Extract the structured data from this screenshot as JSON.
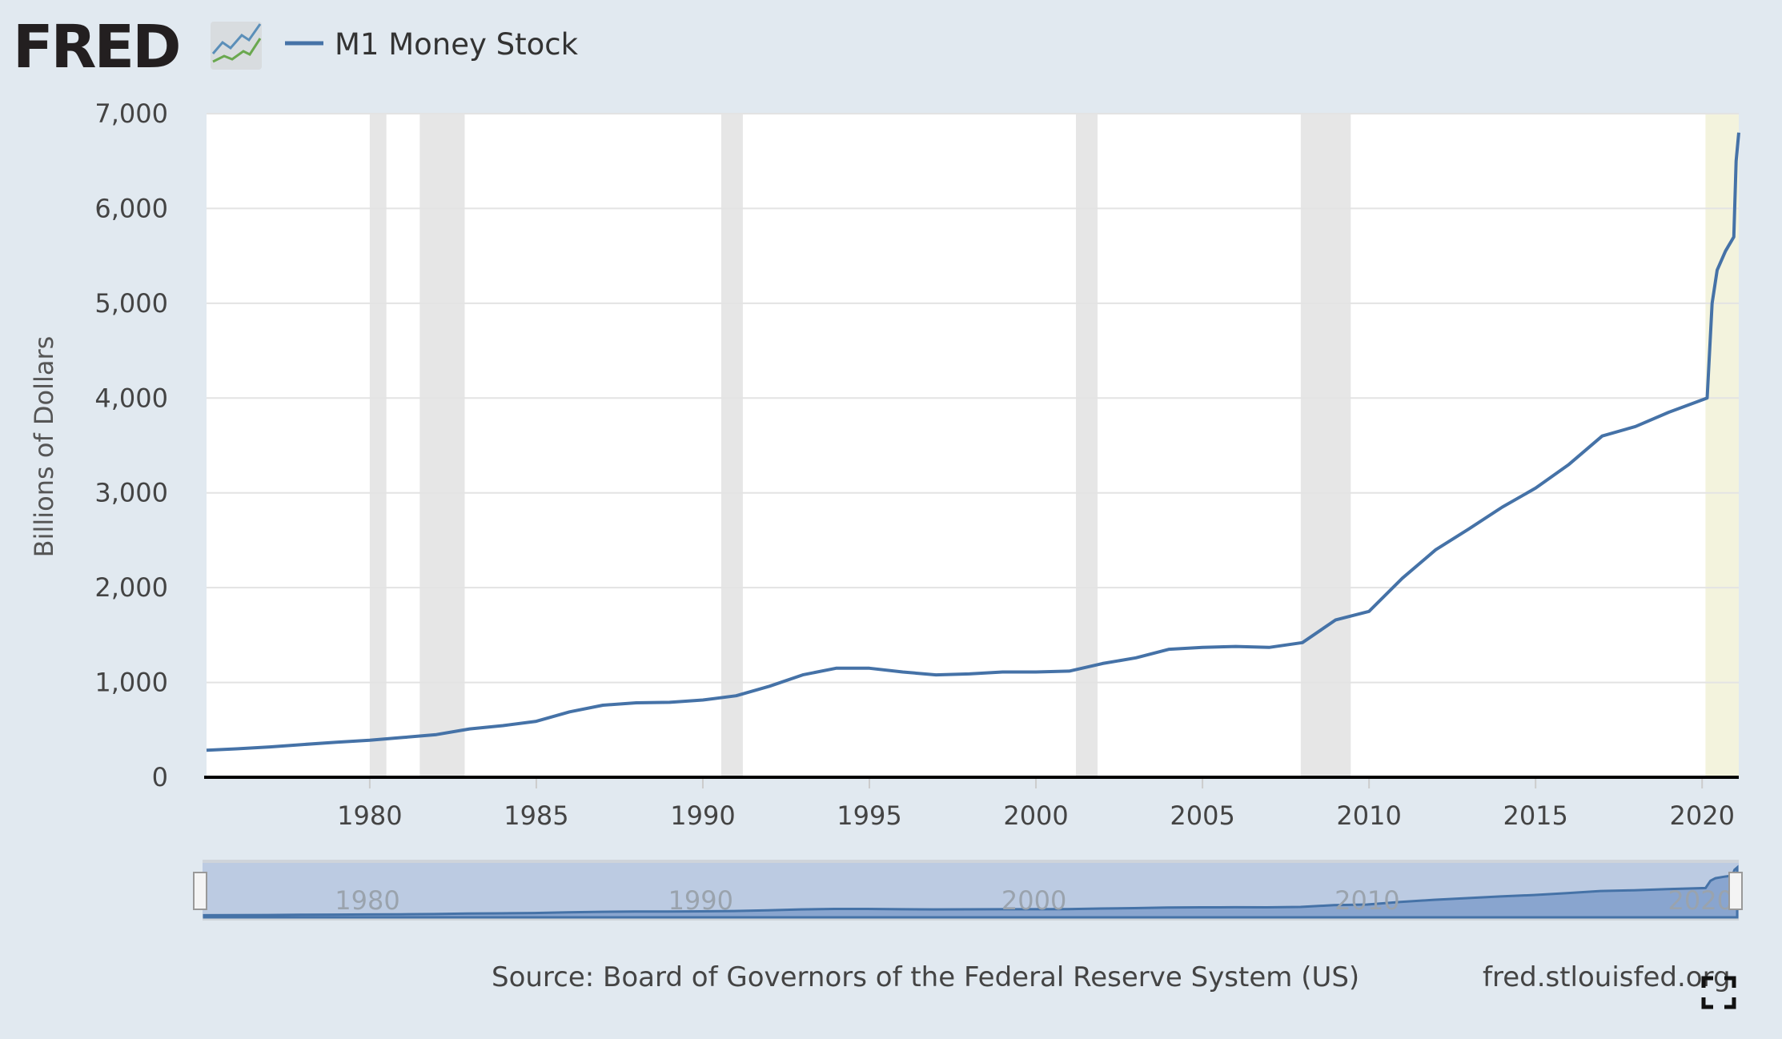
{
  "header": {
    "logo_text": "FRED",
    "legend_label": "M1 Money Stock"
  },
  "colors": {
    "series": "#4572a7",
    "recession": "#e6e6e6",
    "highlight": "#f3f3dd",
    "background": "#e1e9f0",
    "plot": "#ffffff"
  },
  "chart_data": {
    "type": "line",
    "title": "",
    "xlabel": "",
    "ylabel": "Billions of Dollars",
    "xlim": [
      1975.1,
      2021.1
    ],
    "ylim": [
      0,
      7000
    ],
    "grid": true,
    "legend": "top-left",
    "y_ticks": [
      "0",
      "1,000",
      "2,000",
      "3,000",
      "4,000",
      "5,000",
      "6,000",
      "7,000"
    ],
    "y_tick_values": [
      0,
      1000,
      2000,
      3000,
      4000,
      5000,
      6000,
      7000
    ],
    "x_ticks": [
      "1980",
      "1985",
      "1990",
      "1995",
      "2000",
      "2005",
      "2010",
      "2015",
      "2020"
    ],
    "x_tick_values": [
      1980,
      1985,
      1990,
      1995,
      2000,
      2005,
      2010,
      2015,
      2020
    ],
    "series": [
      {
        "name": "M1 Money Stock",
        "x": [
          1975.1,
          1976,
          1977,
          1978,
          1979,
          1980,
          1981,
          1982,
          1983,
          1984,
          1985,
          1986,
          1987,
          1988,
          1989,
          1990,
          1991,
          1992,
          1993,
          1994,
          1995,
          1996,
          1997,
          1998,
          1999,
          2000,
          2001,
          2002,
          2003,
          2004,
          2005,
          2006,
          2007,
          2008,
          2009,
          2010,
          2011,
          2012,
          2013,
          2014,
          2015,
          2016,
          2017,
          2018,
          2019,
          2020.15,
          2020.3,
          2020.45,
          2020.7,
          2020.95,
          2021.02,
          2021.1
        ],
        "values": [
          285,
          300,
          320,
          345,
          370,
          390,
          420,
          450,
          510,
          545,
          590,
          690,
          760,
          785,
          790,
          815,
          860,
          960,
          1080,
          1150,
          1150,
          1110,
          1080,
          1090,
          1110,
          1110,
          1120,
          1200,
          1260,
          1350,
          1370,
          1380,
          1370,
          1420,
          1660,
          1750,
          2100,
          2400,
          2620,
          2850,
          3050,
          3300,
          3600,
          3700,
          3850,
          4000,
          5000,
          5350,
          5550,
          5700,
          6500,
          6800
        ]
      }
    ],
    "recessions": [
      [
        1980.0,
        1980.5
      ],
      [
        1981.5,
        1982.85
      ],
      [
        1990.55,
        1991.2
      ],
      [
        2001.2,
        2001.85
      ],
      [
        2007.95,
        2009.45
      ]
    ],
    "highlight_range": [
      2020.1,
      2021.1
    ],
    "navigator_ticks": [
      "1980",
      "1990",
      "2000",
      "2010",
      "2020"
    ],
    "navigator_tick_values": [
      1980,
      1990,
      2000,
      2010,
      2020
    ]
  },
  "footer": {
    "source": "Source: Board of Governors of the Federal Reserve System (US)",
    "site": "fred.stlouisfed.org"
  }
}
